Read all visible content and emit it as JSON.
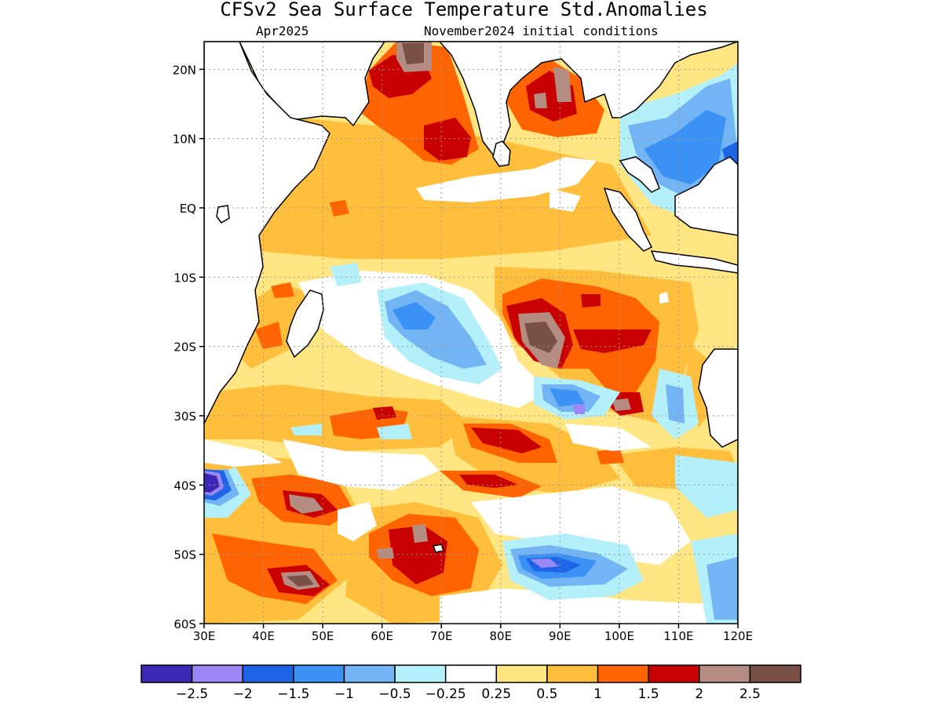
{
  "title": "CFSv2 Sea Surface Temperature Std.Anomalies",
  "subtitle_left": "Apr2025",
  "subtitle_right": "November2024 initial conditions",
  "map": {
    "lon_range": [
      30,
      120
    ],
    "lat_range": [
      -60,
      24
    ],
    "lat_ticks": [
      {
        "value": 20,
        "label": "20N"
      },
      {
        "value": 10,
        "label": "10N"
      },
      {
        "value": 0,
        "label": "EQ"
      },
      {
        "value": -10,
        "label": "10S"
      },
      {
        "value": -20,
        "label": "20S"
      },
      {
        "value": -30,
        "label": "30S"
      },
      {
        "value": -40,
        "label": "40S"
      },
      {
        "value": -50,
        "label": "50S"
      },
      {
        "value": -60,
        "label": "60S"
      }
    ],
    "lon_ticks": [
      {
        "value": 30,
        "label": "30E"
      },
      {
        "value": 40,
        "label": "40E"
      },
      {
        "value": 50,
        "label": "50E"
      },
      {
        "value": 60,
        "label": "60E"
      },
      {
        "value": 70,
        "label": "70E"
      },
      {
        "value": 80,
        "label": "80E"
      },
      {
        "value": 90,
        "label": "90E"
      },
      {
        "value": 100,
        "label": "100E"
      },
      {
        "value": 110,
        "label": "110E"
      },
      {
        "value": 120,
        "label": "120E"
      }
    ],
    "grid": true
  },
  "colorbar": {
    "colors": [
      "#3c28b4",
      "#9b87f5",
      "#1e64e6",
      "#3c91f5",
      "#73b4f5",
      "#b4f0fa",
      "#ffffff",
      "#ffe682",
      "#ffbe3c",
      "#ff6400",
      "#c80000",
      "#b48c82",
      "#785046"
    ],
    "labels": [
      "−2.5",
      "−2",
      "−1.5",
      "−1",
      "−0.5",
      "−0.25",
      "0.25",
      "0.5",
      "1",
      "1.5",
      "2",
      "2.5"
    ]
  }
}
